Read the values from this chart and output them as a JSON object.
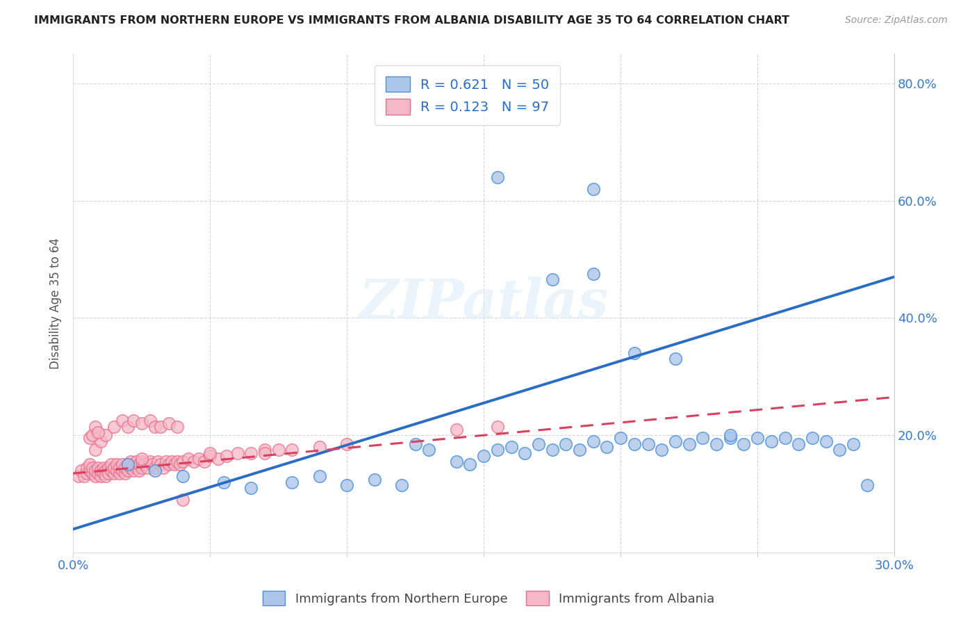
{
  "title": "IMMIGRANTS FROM NORTHERN EUROPE VS IMMIGRANTS FROM ALBANIA DISABILITY AGE 35 TO 64 CORRELATION CHART",
  "source": "Source: ZipAtlas.com",
  "ylabel": "Disability Age 35 to 64",
  "xlim": [
    0.0,
    0.3
  ],
  "ylim": [
    0.0,
    0.85
  ],
  "xticks": [
    0.0,
    0.05,
    0.1,
    0.15,
    0.2,
    0.25,
    0.3
  ],
  "xticklabels": [
    "0.0%",
    "",
    "",
    "",
    "",
    "",
    "30.0%"
  ],
  "yticks": [
    0.2,
    0.4,
    0.6,
    0.8
  ],
  "yticklabels": [
    "20.0%",
    "40.0%",
    "60.0%",
    "80.0%"
  ],
  "blue_R": 0.621,
  "blue_N": 50,
  "pink_R": 0.123,
  "pink_N": 97,
  "blue_color": "#adc6e8",
  "blue_edge_color": "#4a90d9",
  "blue_line_color": "#2b6cc4",
  "pink_color": "#f5b8c8",
  "pink_edge_color": "#e8708a",
  "pink_line_color": "#d94060",
  "watermark": "ZIPatlas",
  "blue_scatter_x": [
    0.02,
    0.03,
    0.04,
    0.055,
    0.065,
    0.08,
    0.09,
    0.1,
    0.11,
    0.12,
    0.125,
    0.13,
    0.14,
    0.145,
    0.15,
    0.155,
    0.16,
    0.165,
    0.17,
    0.175,
    0.18,
    0.185,
    0.19,
    0.195,
    0.2,
    0.205,
    0.21,
    0.215,
    0.22,
    0.225,
    0.23,
    0.235,
    0.24,
    0.245,
    0.25,
    0.255,
    0.26,
    0.265,
    0.27,
    0.275,
    0.28,
    0.285,
    0.29,
    0.175,
    0.155,
    0.19,
    0.205,
    0.22,
    0.19,
    0.24
  ],
  "blue_scatter_y": [
    0.15,
    0.14,
    0.13,
    0.12,
    0.11,
    0.12,
    0.13,
    0.115,
    0.125,
    0.115,
    0.185,
    0.175,
    0.155,
    0.15,
    0.165,
    0.175,
    0.18,
    0.17,
    0.185,
    0.175,
    0.185,
    0.175,
    0.19,
    0.18,
    0.195,
    0.185,
    0.185,
    0.175,
    0.19,
    0.185,
    0.195,
    0.185,
    0.195,
    0.185,
    0.195,
    0.19,
    0.195,
    0.185,
    0.195,
    0.19,
    0.175,
    0.185,
    0.115,
    0.465,
    0.64,
    0.62,
    0.34,
    0.33,
    0.475,
    0.2
  ],
  "pink_scatter_x": [
    0.002,
    0.003,
    0.004,
    0.005,
    0.005,
    0.006,
    0.006,
    0.007,
    0.007,
    0.008,
    0.008,
    0.009,
    0.009,
    0.01,
    0.01,
    0.011,
    0.011,
    0.012,
    0.012,
    0.013,
    0.013,
    0.014,
    0.014,
    0.015,
    0.015,
    0.016,
    0.016,
    0.017,
    0.017,
    0.018,
    0.018,
    0.019,
    0.019,
    0.02,
    0.02,
    0.021,
    0.021,
    0.022,
    0.022,
    0.023,
    0.023,
    0.024,
    0.024,
    0.025,
    0.025,
    0.026,
    0.027,
    0.028,
    0.029,
    0.03,
    0.031,
    0.032,
    0.033,
    0.034,
    0.035,
    0.036,
    0.037,
    0.038,
    0.039,
    0.04,
    0.042,
    0.044,
    0.046,
    0.048,
    0.05,
    0.053,
    0.056,
    0.06,
    0.065,
    0.07,
    0.075,
    0.08,
    0.09,
    0.1,
    0.14,
    0.155,
    0.04,
    0.008,
    0.01,
    0.012,
    0.015,
    0.018,
    0.02,
    0.022,
    0.025,
    0.028,
    0.03,
    0.032,
    0.035,
    0.038,
    0.006,
    0.007,
    0.008,
    0.009,
    0.05,
    0.025,
    0.07
  ],
  "pink_scatter_y": [
    0.13,
    0.14,
    0.13,
    0.135,
    0.145,
    0.14,
    0.15,
    0.135,
    0.145,
    0.13,
    0.14,
    0.135,
    0.145,
    0.13,
    0.14,
    0.145,
    0.135,
    0.14,
    0.13,
    0.145,
    0.135,
    0.14,
    0.15,
    0.135,
    0.145,
    0.14,
    0.15,
    0.135,
    0.145,
    0.14,
    0.15,
    0.135,
    0.145,
    0.14,
    0.15,
    0.145,
    0.155,
    0.14,
    0.15,
    0.145,
    0.155,
    0.14,
    0.15,
    0.145,
    0.155,
    0.15,
    0.145,
    0.155,
    0.15,
    0.145,
    0.155,
    0.15,
    0.145,
    0.155,
    0.15,
    0.155,
    0.15,
    0.155,
    0.15,
    0.155,
    0.16,
    0.155,
    0.16,
    0.155,
    0.165,
    0.16,
    0.165,
    0.17,
    0.17,
    0.175,
    0.175,
    0.175,
    0.18,
    0.185,
    0.21,
    0.215,
    0.09,
    0.175,
    0.19,
    0.2,
    0.215,
    0.225,
    0.215,
    0.225,
    0.22,
    0.225,
    0.215,
    0.215,
    0.22,
    0.215,
    0.195,
    0.2,
    0.215,
    0.205,
    0.17,
    0.16,
    0.17
  ],
  "blue_line_x": [
    0.0,
    0.3
  ],
  "blue_line_y": [
    0.04,
    0.47
  ],
  "pink_line_x": [
    0.0,
    0.3
  ],
  "pink_line_y": [
    0.135,
    0.265
  ]
}
